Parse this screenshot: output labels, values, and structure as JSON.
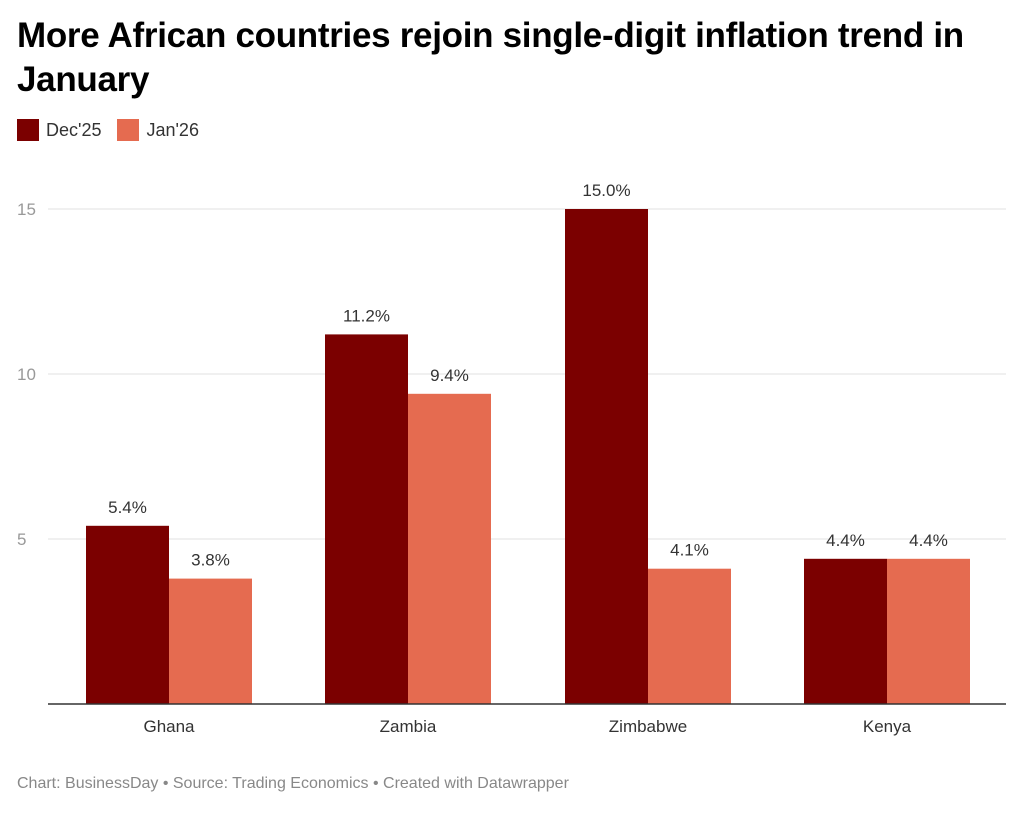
{
  "title": "More African countries rejoin single-digit inflation trend in January",
  "footer": "Chart: BusinessDay • Source: Trading Economics • Created with Datawrapper",
  "colors": {
    "dec": "#7b0000",
    "jan": "#e56b50",
    "grid": "#e2e2e2",
    "axis": "#333333",
    "tick": "#999999"
  },
  "chart_data": {
    "type": "bar",
    "categories": [
      "Ghana",
      "Zambia",
      "Zimbabwe",
      "Kenya"
    ],
    "series": [
      {
        "name": "Dec'25",
        "values": [
          5.4,
          11.2,
          15.0,
          4.4
        ],
        "labels": [
          "5.4%",
          "11.2%",
          "15.0%",
          "4.4%"
        ]
      },
      {
        "name": "Jan'26",
        "values": [
          3.8,
          9.4,
          4.1,
          4.4
        ],
        "labels": [
          "3.8%",
          "9.4%",
          "4.1%",
          "4.4%"
        ]
      }
    ],
    "yticks": [
      5,
      10,
      15
    ],
    "ylim": [
      0,
      15
    ],
    "grid": true,
    "legend": "top-left",
    "title": "More African countries rejoin single-digit inflation trend in January"
  }
}
